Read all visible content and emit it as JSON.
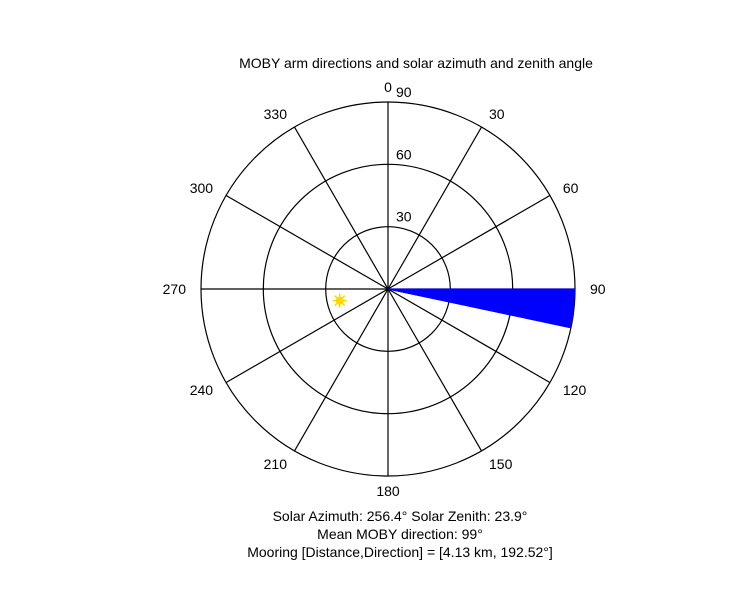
{
  "chart_data": {
    "type": "polar",
    "title": "MOBY arm directions and solar azimuth and zenith angle",
    "angular_ticks": [
      "0",
      "30",
      "60",
      "90",
      "120",
      "150",
      "180",
      "210",
      "240",
      "270",
      "300",
      "330"
    ],
    "radial_ticks": [
      "30",
      "60",
      "90"
    ],
    "radial_max": 90,
    "arm_direction_range": [
      90,
      102
    ],
    "arm_color": "#0000ff",
    "sun": {
      "azimuth": 256.4,
      "zenith": 23.9,
      "color": "#ffd700"
    },
    "info": {
      "solar_line": "Solar Azimuth: 256.4°   Solar Zenith: 23.9°",
      "moby_line": "Mean MOBY direction: 99°",
      "mooring_line": "Mooring [Distance,Direction] = [4.13 km, 192.52°]"
    }
  }
}
